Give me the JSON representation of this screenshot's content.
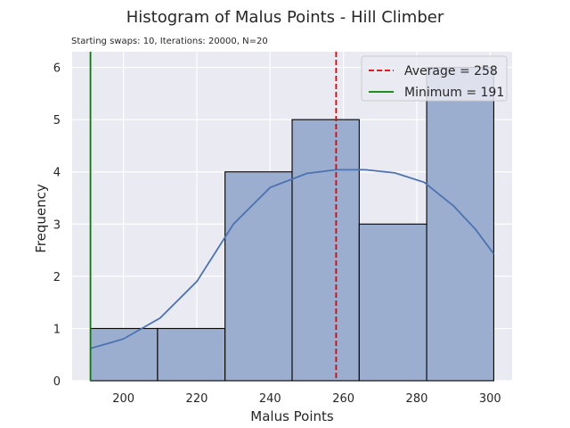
{
  "chart_data": {
    "type": "bar",
    "title": "Histogram of Malus Points - Hill Climber",
    "subtitle": "Starting swaps: 10, Iterations: 20000, N=20",
    "xlabel": "Malus Points",
    "ylabel": "Frequency",
    "xlim": [
      186,
      306
    ],
    "ylim": [
      0,
      6.3
    ],
    "grid": true,
    "legend_position": "top-right",
    "x_ticks": [
      200,
      220,
      240,
      260,
      280,
      300
    ],
    "y_ticks": [
      0,
      1,
      2,
      3,
      4,
      5,
      6
    ],
    "bins": [
      {
        "start": 191.0,
        "end": 209.3,
        "count": 1
      },
      {
        "start": 209.3,
        "end": 227.7,
        "count": 1
      },
      {
        "start": 227.7,
        "end": 246.0,
        "count": 4
      },
      {
        "start": 246.0,
        "end": 264.3,
        "count": 5
      },
      {
        "start": 264.3,
        "end": 282.7,
        "count": 3
      },
      {
        "start": 282.7,
        "end": 301.0,
        "count": 6
      }
    ],
    "kde": {
      "x": [
        191,
        200,
        210,
        220,
        230,
        240,
        250,
        258,
        266,
        274,
        282,
        290,
        296,
        301
      ],
      "y": [
        0.62,
        0.8,
        1.2,
        1.9,
        3.0,
        3.7,
        3.97,
        4.04,
        4.04,
        3.98,
        3.8,
        3.35,
        2.9,
        2.43
      ]
    },
    "reference_lines": [
      {
        "label": "Average = 258",
        "x": 258,
        "color": "#e00000",
        "style": "dashed"
      },
      {
        "label": "Minimum = 191",
        "x": 191,
        "color": "#008000",
        "style": "solid"
      }
    ],
    "colors": {
      "bar_fill": "#9baed0",
      "bar_edge": "#000000",
      "kde_line": "#4c72b0",
      "plot_bg": "#eaeaf2",
      "grid": "#ffffff"
    }
  }
}
